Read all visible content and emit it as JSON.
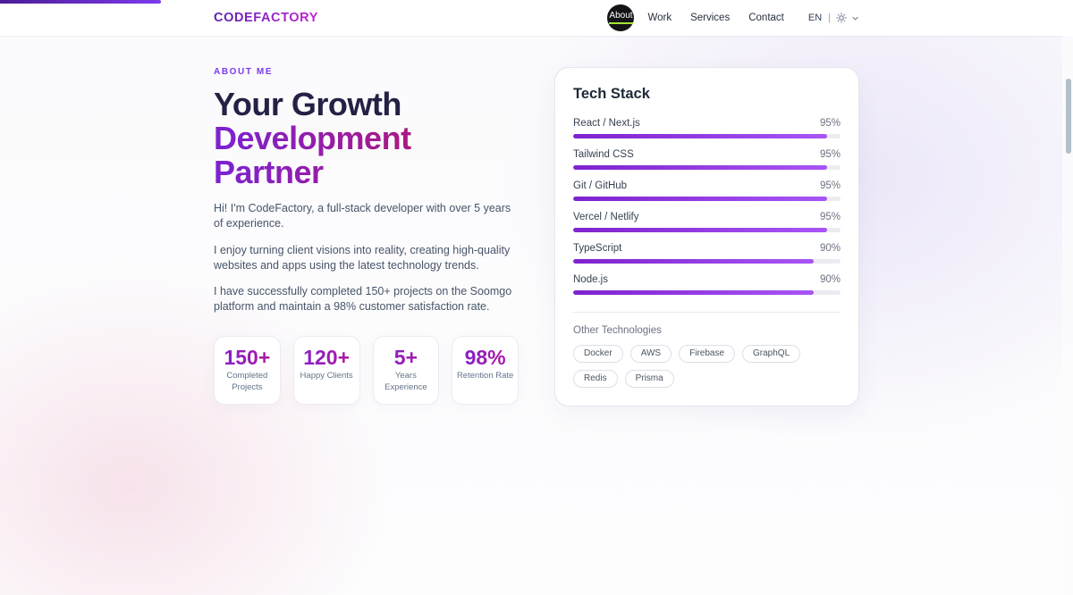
{
  "scroll_indicator": {
    "progress_percent": 15
  },
  "header": {
    "logo": "CODEFACTORY",
    "nav": [
      {
        "label": "About",
        "active": true
      },
      {
        "label": "Work",
        "active": false
      },
      {
        "label": "Services",
        "active": false
      },
      {
        "label": "Contact",
        "active": false
      }
    ],
    "language": "EN",
    "separator": "|"
  },
  "about": {
    "eyebrow": "ABOUT ME",
    "heading_line1": "Your Growth",
    "heading_line2": "Development Partner",
    "paragraphs": [
      "Hi! I'm CodeFactory, a full-stack developer with over 5 years of experience.",
      "I enjoy turning client visions into reality, creating high-quality websites and apps using the latest technology trends.",
      "I have successfully completed 150+ projects on the Soomgo platform and maintain a 98% customer satisfaction rate."
    ],
    "stats": [
      {
        "value": "150+",
        "label": "Completed Projects"
      },
      {
        "value": "120+",
        "label": "Happy Clients"
      },
      {
        "value": "5+",
        "label": "Years Experience"
      },
      {
        "value": "98%",
        "label": "Retention Rate"
      }
    ]
  },
  "tech_stack": {
    "title": "Tech Stack",
    "skills": [
      {
        "name": "React / Next.js",
        "percent": 95,
        "percent_label": "95%"
      },
      {
        "name": "Tailwind CSS",
        "percent": 95,
        "percent_label": "95%"
      },
      {
        "name": "Git / GitHub",
        "percent": 95,
        "percent_label": "95%"
      },
      {
        "name": "Vercel / Netlify",
        "percent": 95,
        "percent_label": "95%"
      },
      {
        "name": "TypeScript",
        "percent": 90,
        "percent_label": "90%"
      },
      {
        "name": "Node.js",
        "percent": 90,
        "percent_label": "90%"
      }
    ],
    "other_title": "Other Technologies",
    "other_technologies": [
      "Docker",
      "AWS",
      "Firebase",
      "GraphQL",
      "Redis",
      "Prisma"
    ]
  },
  "colors": {
    "accent_purple": "#7c3aed",
    "heading_gradient_start": "#7e22ce",
    "heading_gradient_end": "#a4114d",
    "bar_gradient_start": "#7e22ce",
    "bar_gradient_end": "#a855f7",
    "nav_active_underline": "#a3e635",
    "logo_gradient_start": "#5b21b6",
    "logo_gradient_end": "#c026d3"
  }
}
